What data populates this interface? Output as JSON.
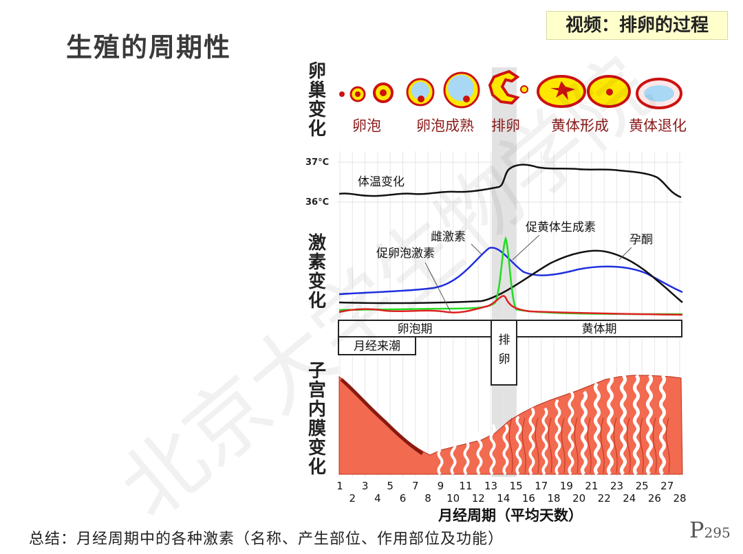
{
  "title": "生殖的周期性",
  "video_label": "视频：排卵的过程",
  "summary": "总结：月经周期中的各种激素（名称、产生部位、作用部位及功能）",
  "page": {
    "prefix": "P",
    "number": "295"
  },
  "watermark": "北京大学生物学院",
  "section_labels": {
    "ovary": "卵巢变化",
    "hormone": "激素变化",
    "uterus": "子宫内膜变化"
  },
  "ovary_stages": [
    "卵泡",
    "卵泡成熟",
    "排卵",
    "黄体形成",
    "黄体退化"
  ],
  "temperature": {
    "label": "体温变化",
    "y_top": "37°C",
    "y_bottom": "36°C"
  },
  "hormones": {
    "estrogen": "雌激素",
    "fsh": "促卵泡激素",
    "lh": "促黄体生成素",
    "progesterone": "孕酮"
  },
  "phases": {
    "follicular": "卵泡期",
    "ovulation": "排卵",
    "luteal": "黄体期",
    "menstruation": "月经来潮"
  },
  "x_axis": {
    "odd_ticks": [
      "1",
      "3",
      "5",
      "7",
      "9",
      "11",
      "13",
      "15",
      "17",
      "19",
      "21",
      "23",
      "25",
      "27"
    ],
    "even_ticks": [
      "2",
      "4",
      "6",
      "8",
      "10",
      "12",
      "14",
      "16",
      "18",
      "20",
      "22",
      "24",
      "26",
      "28"
    ],
    "label": "月经周期（平均天数）"
  },
  "colors": {
    "estrogen": "#1f2fe0",
    "lh": "#22dd22",
    "fsh": "#dd2222",
    "progesterone": "#111111",
    "endometrium": "#f26a4f",
    "follicle_red": "#cc1111",
    "corpus_yellow": "#ffe800",
    "label_red": "#8b1a1a"
  }
}
